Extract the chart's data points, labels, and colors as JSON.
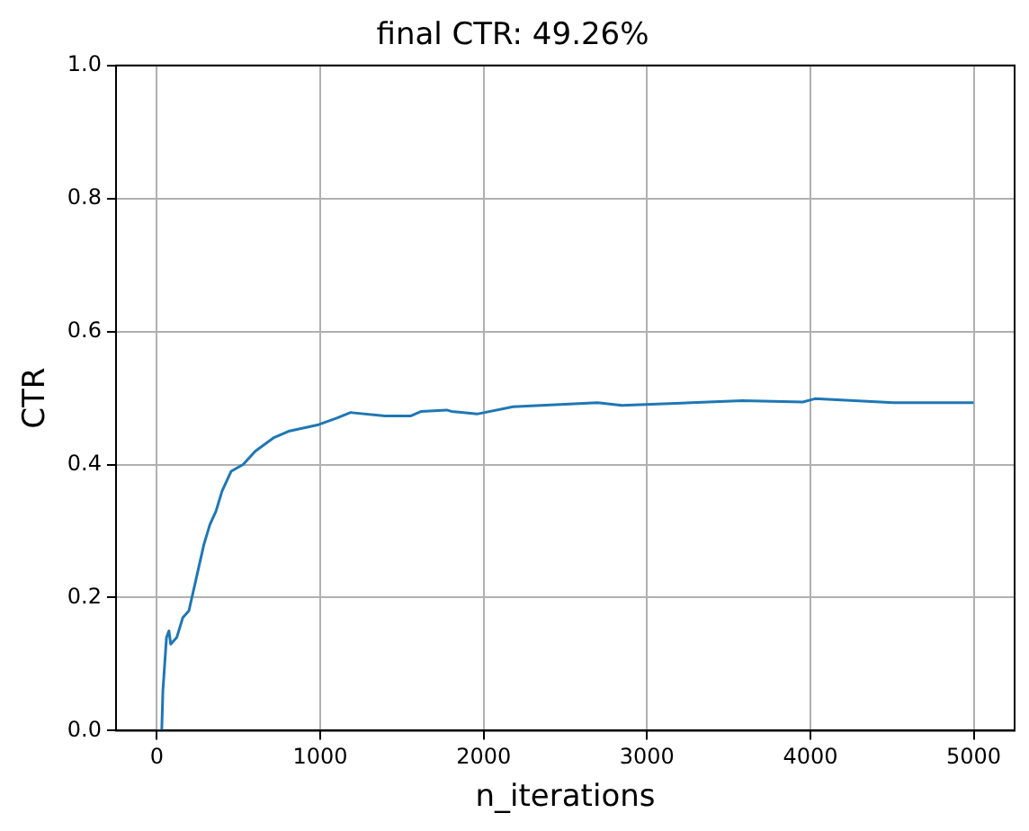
{
  "chart_data": {
    "type": "line",
    "title": "final CTR: 49.26%",
    "xlabel": "n_iterations",
    "ylabel": "CTR",
    "x": [
      0,
      30,
      37,
      59,
      74,
      85,
      122,
      159,
      196,
      233,
      288,
      325,
      362,
      399,
      455,
      528,
      602,
      713,
      806,
      990,
      1101,
      1183,
      1194,
      1397,
      1552,
      1619,
      1774,
      1803,
      1959,
      2181,
      2698,
      2846,
      3584,
      3954,
      4028,
      4509,
      4999
    ],
    "series": [
      {
        "color": "#1f77b4",
        "values": [
          0,
          0,
          0.06,
          0.14,
          0.15,
          0.13,
          0.14,
          0.17,
          0.18,
          0.22,
          0.28,
          0.31,
          0.33,
          0.36,
          0.39,
          0.4,
          0.42,
          0.44,
          0.45,
          0.46,
          0.47,
          0.478,
          0.478,
          0.473,
          0.473,
          0.48,
          0.482,
          0.48,
          0.476,
          0.487,
          0.493,
          0.489,
          0.496,
          0.494,
          0.499,
          0.493,
          0.493
        ]
      }
    ],
    "xlim": [
      -250,
      5250
    ],
    "xticks": [
      0,
      1000,
      2000,
      3000,
      4000,
      5000
    ],
    "ylim": [
      0,
      1
    ],
    "yticks": [
      {
        "value": 0,
        "label": "0.0"
      },
      {
        "value": 0.2,
        "label": "0.2"
      },
      {
        "value": 0.4,
        "label": "0.4"
      },
      {
        "value": 0.6,
        "label": "0.6"
      },
      {
        "value": 0.8,
        "label": "0.8"
      },
      {
        "value": 1,
        "label": "1.0"
      }
    ],
    "grid": true,
    "legend": false,
    "marker": "none",
    "line_style": "solid"
  }
}
